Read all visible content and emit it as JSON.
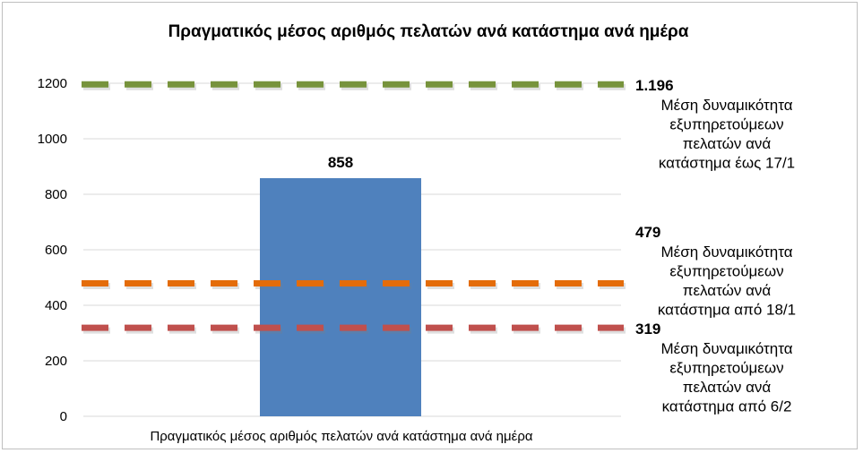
{
  "chart_data": {
    "type": "bar",
    "title": "Πραγματικός μέσος αριθμός πελατών ανά κατάστημα ανά ημέρα",
    "categories": [
      "Πραγματικός μέσος αριθμός πελατών ανά κατάστημα ανά ημέρα"
    ],
    "values": [
      858
    ],
    "value_labels": [
      "858"
    ],
    "bar_color": "#4f81bd",
    "ylim": [
      0,
      1200
    ],
    "yticks": [
      0,
      200,
      400,
      600,
      800,
      1000,
      1200
    ],
    "grid": true,
    "reference_lines": [
      {
        "value": 1196,
        "value_label": "1.196",
        "lines": [
          "Μέση δυναμικότητα",
          "εξυπηρετούμεων",
          "πελατών ανά",
          "κατάστημα έως 17/1"
        ],
        "color": "#77933c"
      },
      {
        "value": 479,
        "value_label": "479",
        "lines": [
          "Μέση δυναμικότητα",
          "εξυπηρετούμεων",
          "πελατών ανά",
          "κατάστημα από 18/1"
        ],
        "color": "#e46c0a"
      },
      {
        "value": 319,
        "value_label": "319",
        "lines": [
          "Μέση δυναμικότητα",
          "εξυπηρετούμεων",
          "πελατών ανά",
          "κατάστημα από 6/2"
        ],
        "color": "#c0504d"
      }
    ]
  }
}
